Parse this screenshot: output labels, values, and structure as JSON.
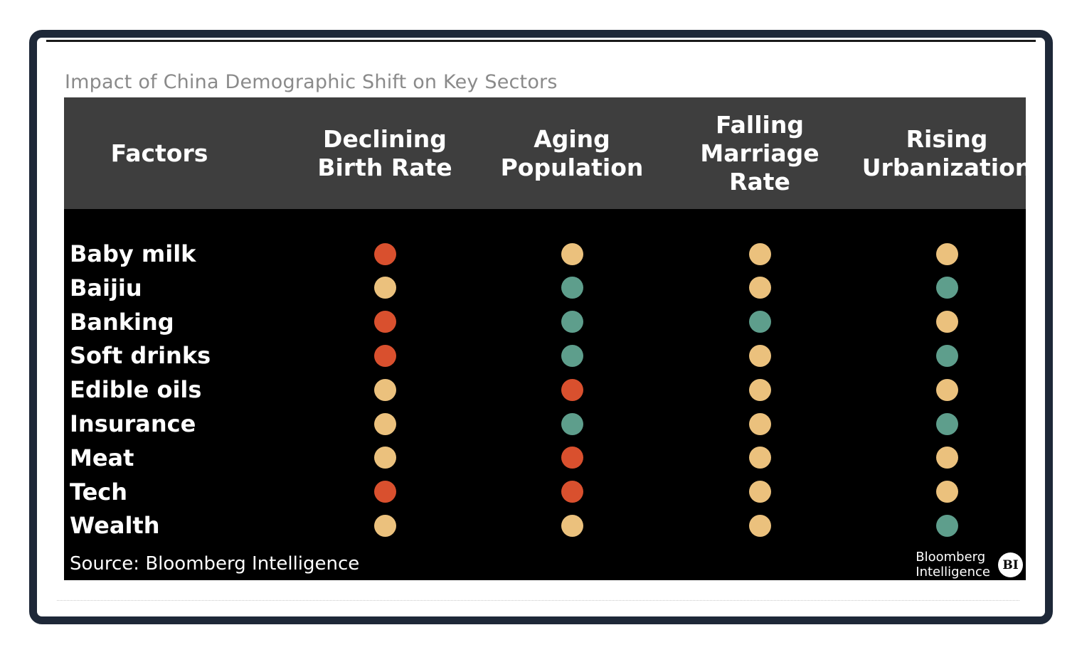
{
  "chart_data": {
    "type": "table",
    "title": "Impact of China Demographic Shift on Key Sectors",
    "row_header": "Factors",
    "columns": [
      "Declining\nBirth Rate",
      "Aging\nPopulation",
      "Falling\nMarriage\nRate",
      "Rising\nUrbanization"
    ],
    "rows": [
      {
        "label": "Baby milk",
        "values": [
          "red",
          "yellow",
          "yellow",
          "yellow"
        ]
      },
      {
        "label": "Baijiu",
        "values": [
          "yellow",
          "green",
          "yellow",
          "green"
        ]
      },
      {
        "label": "Banking",
        "values": [
          "red",
          "green",
          "green",
          "yellow"
        ]
      },
      {
        "label": "Soft drinks",
        "values": [
          "red",
          "green",
          "yellow",
          "green"
        ]
      },
      {
        "label": "Edible oils",
        "values": [
          "yellow",
          "red",
          "yellow",
          "yellow"
        ]
      },
      {
        "label": "Insurance",
        "values": [
          "yellow",
          "green",
          "yellow",
          "green"
        ]
      },
      {
        "label": "Meat",
        "values": [
          "yellow",
          "red",
          "yellow",
          "yellow"
        ]
      },
      {
        "label": "Tech",
        "values": [
          "red",
          "red",
          "yellow",
          "yellow"
        ]
      },
      {
        "label": "Wealth",
        "values": [
          "yellow",
          "yellow",
          "yellow",
          "green"
        ]
      }
    ],
    "colors": {
      "red": "#d9502e",
      "yellow": "#ebc17d",
      "green": "#5e9e8c"
    },
    "source": "Source: Bloomberg Intelligence"
  },
  "branding": {
    "name": "Bloomberg\nIntelligence",
    "badge": "BI"
  }
}
